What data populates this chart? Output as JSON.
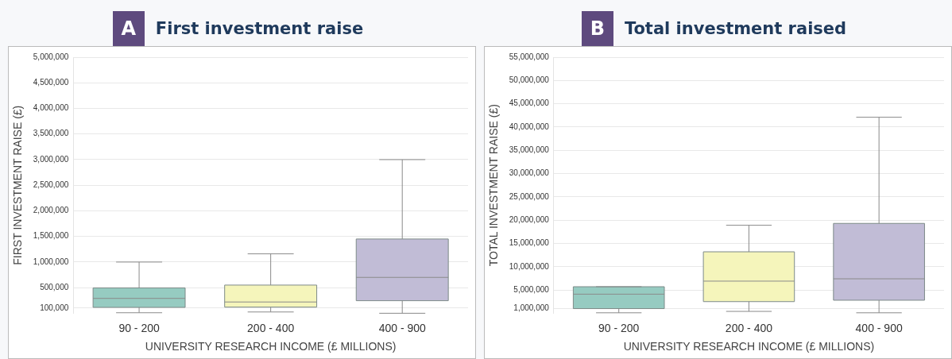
{
  "chart_data": [
    {
      "type": "box",
      "title": "First investment raise",
      "annotations": [
        "A"
      ],
      "xlabel": "UNIVERSITY RESEARCH INCOME (£ MILLIONS)",
      "ylabel": "FIRST INVESTMENT RAISE (£)",
      "categories": [
        "90 - 200",
        "200 - 400",
        "400 - 900"
      ],
      "colors": [
        "#96cbc1",
        "#f5f5bb",
        "#c1bcd6"
      ],
      "boxes": [
        {
          "low": 10000,
          "q1": 115000,
          "median": 290000,
          "q3": 495000,
          "high": 1000000
        },
        {
          "low": 25000,
          "q1": 120000,
          "median": 220000,
          "q3": 550000,
          "high": 1160000
        },
        {
          "low": 0,
          "q1": 245000,
          "median": 700000,
          "q3": 1450000,
          "high": 3000000
        }
      ],
      "ylim": [
        0,
        5000000
      ],
      "yticks": [
        {
          "value": 100000,
          "label": "100,000"
        },
        {
          "value": 500000,
          "label": "500,000"
        },
        {
          "value": 1000000,
          "label": "1,000,000"
        },
        {
          "value": 1500000,
          "label": "1,500,000"
        },
        {
          "value": 2000000,
          "label": "2,000,000"
        },
        {
          "value": 2500000,
          "label": "2,500,000"
        },
        {
          "value": 3000000,
          "label": "3,000,000"
        },
        {
          "value": 3500000,
          "label": "3,500,000"
        },
        {
          "value": 4000000,
          "label": "4,000,000"
        },
        {
          "value": 4500000,
          "label": "4,500,000"
        },
        {
          "value": 5000000,
          "label": "5,000,000"
        }
      ],
      "grid": "y",
      "legend": false
    },
    {
      "type": "box",
      "title": "Total investment raised",
      "annotations": [
        "B"
      ],
      "xlabel": "UNIVERSITY RESEARCH INCOME (£ MILLIONS)",
      "ylabel": "TOTAL INVESTMENT RAISE (£)",
      "categories": [
        "90 - 200",
        "200 - 400",
        "400 - 900"
      ],
      "colors": [
        "#96cbc1",
        "#f5f5bb",
        "#c1bcd6"
      ],
      "boxes": [
        {
          "low": 100000,
          "q1": 1000000,
          "median": 4100000,
          "q3": 5700000,
          "high": 5700000
        },
        {
          "low": 400000,
          "q1": 2500000,
          "median": 6900000,
          "q3": 13200000,
          "high": 18900000
        },
        {
          "low": 100000,
          "q1": 2800000,
          "median": 7400000,
          "q3": 19300000,
          "high": 42100000
        }
      ],
      "ylim": [
        0,
        55000000
      ],
      "yticks": [
        {
          "value": 1000000,
          "label": "1,000,000"
        },
        {
          "value": 5000000,
          "label": "5,000,000"
        },
        {
          "value": 10000000,
          "label": "10,000,000"
        },
        {
          "value": 15000000,
          "label": "15,000,000"
        },
        {
          "value": 20000000,
          "label": "20,000,000"
        },
        {
          "value": 25000000,
          "label": "25,000,000"
        },
        {
          "value": 30000000,
          "label": "30,000,000"
        },
        {
          "value": 35000000,
          "label": "35,000,000"
        },
        {
          "value": 40000000,
          "label": "40,000,000"
        },
        {
          "value": 45000000,
          "label": "45,000,000"
        },
        {
          "value": 50000000,
          "label": "50,000,000"
        },
        {
          "value": 55000000,
          "label": "55,000,000"
        }
      ],
      "grid": "y",
      "legend": false
    }
  ]
}
